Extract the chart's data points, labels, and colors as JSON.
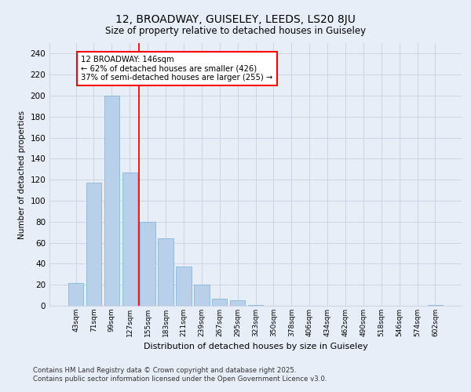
{
  "title1": "12, BROADWAY, GUISELEY, LEEDS, LS20 8JU",
  "title2": "Size of property relative to detached houses in Guiseley",
  "xlabel": "Distribution of detached houses by size in Guiseley",
  "ylabel": "Number of detached properties",
  "bar_values": [
    22,
    117,
    200,
    127,
    80,
    64,
    37,
    20,
    7,
    5,
    1,
    0,
    0,
    0,
    0,
    0,
    0,
    0,
    0,
    0,
    1
  ],
  "categories": [
    "43sqm",
    "71sqm",
    "99sqm",
    "127sqm",
    "155sqm",
    "183sqm",
    "211sqm",
    "239sqm",
    "267sqm",
    "295sqm",
    "323sqm",
    "350sqm",
    "378sqm",
    "406sqm",
    "434sqm",
    "462sqm",
    "490sqm",
    "518sqm",
    "546sqm",
    "574sqm",
    "602sqm"
  ],
  "bar_color": "#b8d0ea",
  "bar_edgecolor": "#7aafd4",
  "vline_x": 3.5,
  "vline_color": "red",
  "annotation_title": "12 BROADWAY: 146sqm",
  "annotation_line1": "← 62% of detached houses are smaller (426)",
  "annotation_line2": "37% of semi-detached houses are larger (255) →",
  "annotation_box_color": "white",
  "annotation_box_edgecolor": "red",
  "ylim": [
    0,
    250
  ],
  "yticks": [
    0,
    20,
    40,
    60,
    80,
    100,
    120,
    140,
    160,
    180,
    200,
    220,
    240
  ],
  "footnote1": "Contains HM Land Registry data © Crown copyright and database right 2025.",
  "footnote2": "Contains public sector information licensed under the Open Government Licence v3.0.",
  "bg_color": "#e8eef8",
  "grid_color": "#c8d0e0"
}
